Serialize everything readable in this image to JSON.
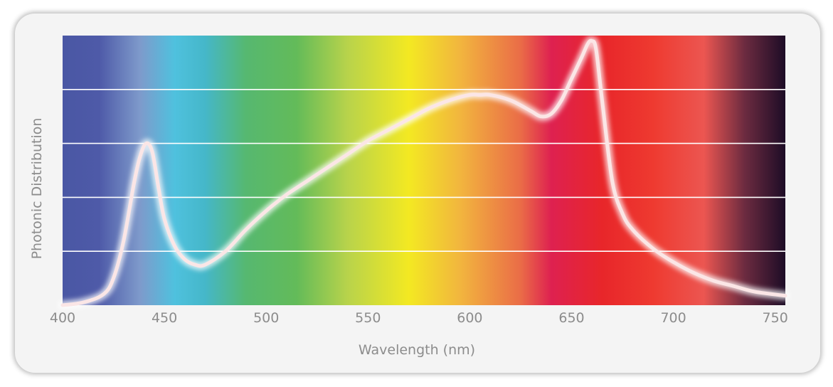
{
  "chart_data": {
    "type": "line",
    "title": "",
    "xlabel": "Wavelength (nm)",
    "ylabel": "Photonic Distribution",
    "xlim": [
      400,
      755
    ],
    "ylim": [
      0,
      100
    ],
    "x_ticks": [
      "400",
      "450",
      "500",
      "550",
      "600",
      "650",
      "700",
      "750"
    ],
    "x_tick_values": [
      400,
      450,
      500,
      550,
      600,
      650,
      700,
      750
    ],
    "y_ticks_labeled": false,
    "grid": true,
    "gridlines_y": [
      20,
      40,
      60,
      80
    ],
    "background": "visible-spectrum gradient",
    "spectrum_colors": [
      {
        "nm": 400,
        "color": "#4a57a4"
      },
      {
        "nm": 418,
        "color": "#4e5aa8"
      },
      {
        "nm": 438,
        "color": "#7e9acb"
      },
      {
        "nm": 455,
        "color": "#4fc1de"
      },
      {
        "nm": 470,
        "color": "#45b7c9"
      },
      {
        "nm": 490,
        "color": "#56b870"
      },
      {
        "nm": 515,
        "color": "#63bb59"
      },
      {
        "nm": 540,
        "color": "#b8d34b"
      },
      {
        "nm": 570,
        "color": "#f3e922"
      },
      {
        "nm": 595,
        "color": "#f2b63e"
      },
      {
        "nm": 625,
        "color": "#ea6c47"
      },
      {
        "nm": 640,
        "color": "#de2150"
      },
      {
        "nm": 665,
        "color": "#e8262a"
      },
      {
        "nm": 690,
        "color": "#ee3a30"
      },
      {
        "nm": 715,
        "color": "#ec5651"
      },
      {
        "nm": 735,
        "color": "#6c2b40"
      },
      {
        "nm": 755,
        "color": "#1d0c26"
      }
    ],
    "series": [
      {
        "color": "#fbe6e6",
        "x": [
          400,
          410,
          420,
          425,
          430,
          435,
          438,
          441,
          444,
          447,
          450,
          455,
          460,
          465,
          470,
          480,
          490,
          500,
          510,
          520,
          530,
          540,
          550,
          560,
          570,
          580,
          590,
          600,
          605,
          610,
          620,
          630,
          635,
          640,
          645,
          650,
          655,
          658,
          660,
          662,
          665,
          670,
          675,
          680,
          690,
          700,
          710,
          720,
          730,
          740,
          755
        ],
        "y": [
          0,
          1,
          4,
          10,
          24,
          45,
          55,
          60,
          57,
          44,
          32,
          22,
          17,
          15,
          15,
          20,
          28,
          35,
          41,
          46,
          51,
          56,
          61,
          65,
          69,
          73,
          76,
          78,
          78,
          78,
          76,
          72,
          70,
          71,
          76,
          84,
          92,
          97,
          98,
          95,
          76,
          46,
          34,
          28,
          21,
          16,
          12,
          9,
          7,
          5,
          3.5
        ]
      }
    ]
  }
}
